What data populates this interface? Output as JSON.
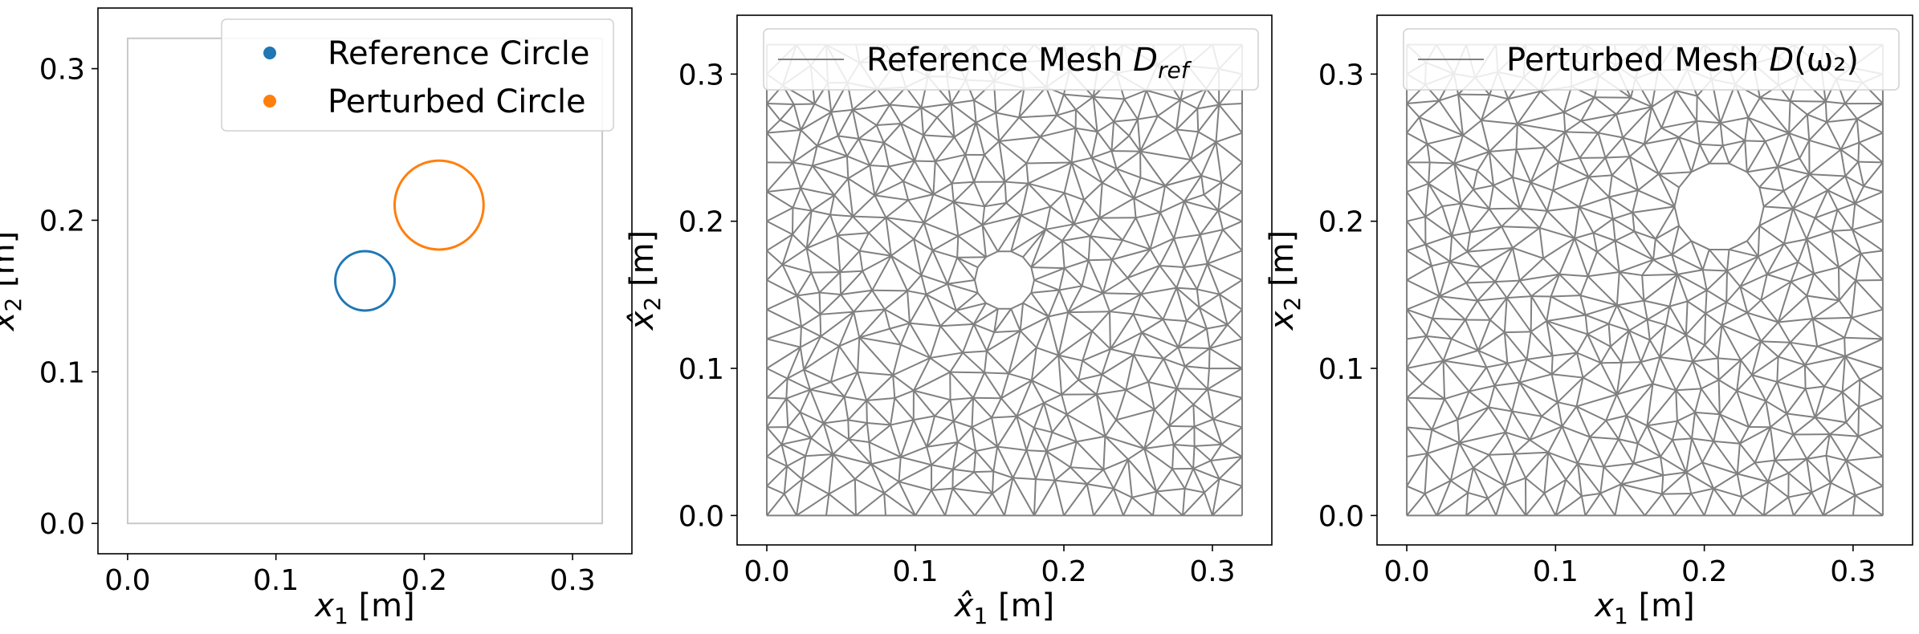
{
  "chart_data": [
    {
      "type": "scatter",
      "xlim": [
        -0.02,
        0.34
      ],
      "ylim": [
        -0.02,
        0.34
      ],
      "xticks": [
        "0.0",
        "0.1",
        "0.2",
        "0.3"
      ],
      "yticks": [
        "0.0",
        "0.1",
        "0.2",
        "0.3"
      ],
      "xlabel": {
        "var": "x",
        "sub": "1",
        "unit": " [m]"
      },
      "ylabel": {
        "var": "x",
        "sub": "2",
        "unit": " [m]"
      },
      "legend_position": "top-right",
      "domain_box": {
        "x": [
          0,
          0.32
        ],
        "y": [
          0,
          0.32
        ],
        "color": "#c8c8c8"
      },
      "series": [
        {
          "name": "Reference Circle",
          "color": "#1f77b4",
          "center": [
            0.16,
            0.16
          ],
          "radius": 0.02
        },
        {
          "name": "Perturbed Circle",
          "color": "#ff7f0e",
          "center": [
            0.21,
            0.21
          ],
          "radius": 0.03
        }
      ]
    },
    {
      "type": "mesh",
      "xlim": [
        -0.02,
        0.34
      ],
      "ylim": [
        -0.02,
        0.34
      ],
      "xticks": [
        "0.0",
        "0.1",
        "0.2",
        "0.3"
      ],
      "yticks": [
        "0.0",
        "0.1",
        "0.2",
        "0.3"
      ],
      "xlabel": {
        "var": "x̂",
        "sub": "1",
        "unit": " [m]"
      },
      "ylabel": {
        "var": "x̂",
        "sub": "2",
        "unit": " [m]"
      },
      "legend_position": "top-right",
      "mesh_color": "#808080",
      "domain": {
        "x": [
          0,
          0.32
        ],
        "y": [
          0,
          0.32
        ]
      },
      "hole": {
        "center": [
          0.16,
          0.16
        ],
        "radius": 0.02
      },
      "legend": {
        "prefix": "Reference Mesh ",
        "var": "D",
        "sub": "ref",
        "suffix": ""
      }
    },
    {
      "type": "mesh",
      "xlim": [
        -0.02,
        0.34
      ],
      "ylim": [
        -0.02,
        0.34
      ],
      "xticks": [
        "0.0",
        "0.1",
        "0.2",
        "0.3"
      ],
      "yticks": [
        "0.0",
        "0.1",
        "0.2",
        "0.3"
      ],
      "xlabel": {
        "var": "x",
        "sub": "1",
        "unit": " [m]"
      },
      "ylabel": {
        "var": "x",
        "sub": "2",
        "unit": " [m]"
      },
      "legend_position": "top-right",
      "mesh_color": "#808080",
      "domain": {
        "x": [
          0,
          0.32
        ],
        "y": [
          0,
          0.32
        ]
      },
      "hole": {
        "center": [
          0.21,
          0.21
        ],
        "radius": 0.03
      },
      "legend": {
        "prefix": "Perturbed Mesh ",
        "var": "D",
        "sub": "",
        "suffix": "(ω₂)"
      }
    }
  ]
}
